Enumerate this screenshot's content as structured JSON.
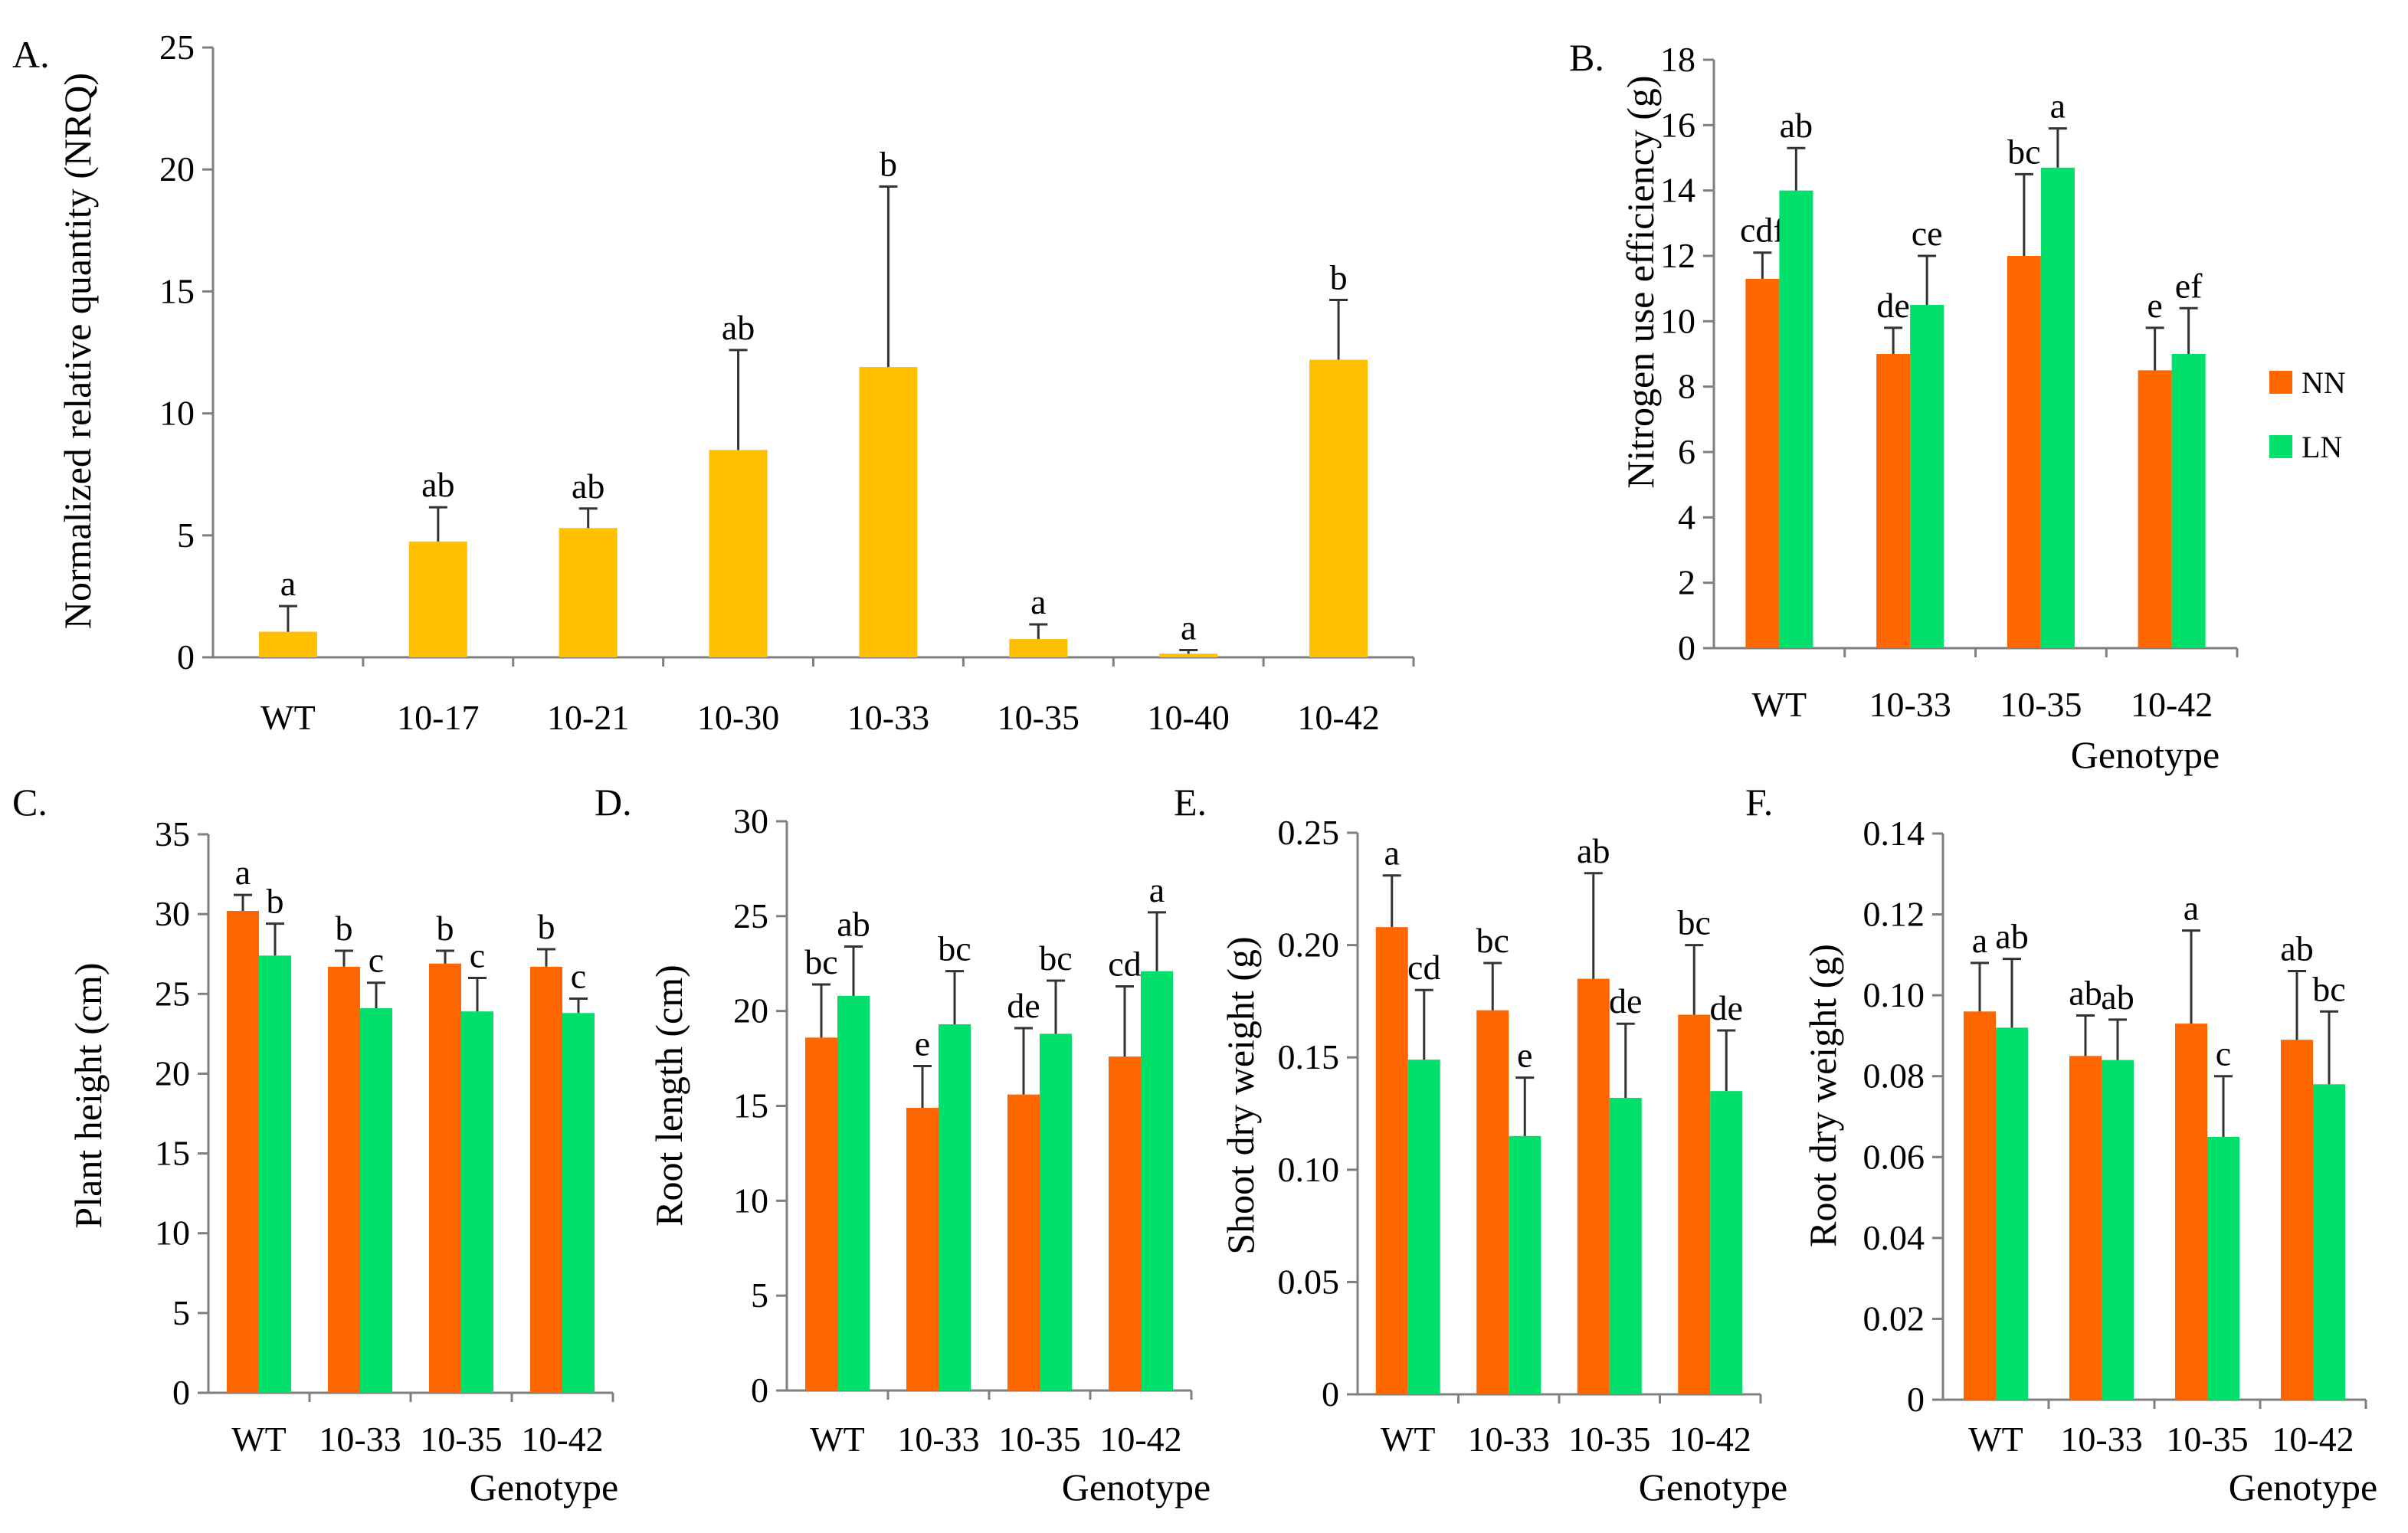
{
  "colors": {
    "single": "#FFC000",
    "NN": "#FF6600",
    "LN": "#00E06A"
  },
  "legend": [
    "NN",
    "LN"
  ],
  "chart_data": [
    {
      "id": "A",
      "panel_label": "A.",
      "type": "bar",
      "categories": [
        "WT",
        "10-17",
        "10-21",
        "10-30",
        "10-33",
        "10-35",
        "10-40",
        "10-42"
      ],
      "series": [
        {
          "name": "",
          "values": [
            1.05,
            4.75,
            5.3,
            8.5,
            11.9,
            0.75,
            0.15,
            12.2
          ],
          "errors": [
            1.05,
            1.4,
            0.8,
            4.1,
            7.4,
            0.6,
            0.15,
            2.45
          ],
          "letters": [
            "a",
            "ab",
            "ab",
            "ab",
            "b",
            "a",
            "a",
            "b"
          ]
        }
      ],
      "ylabel": "Normalized relative quantity (NRQ)",
      "xlabel": "",
      "ylim": [
        0,
        25
      ],
      "yticks": [
        0,
        5,
        10,
        15,
        20,
        25
      ],
      "ytick_labels": [
        "0",
        "5",
        "10",
        "15",
        "20",
        "25"
      ]
    },
    {
      "id": "B",
      "panel_label": "B.",
      "type": "bar",
      "categories": [
        "WT",
        "10-33",
        "10-35",
        "10-42"
      ],
      "series": [
        {
          "name": "NN",
          "values": [
            11.3,
            9.0,
            12.0,
            8.5
          ],
          "errors": [
            0.8,
            0.8,
            2.5,
            1.3
          ],
          "letters": [
            "cdf",
            "de",
            "bc",
            "e"
          ]
        },
        {
          "name": "LN",
          "values": [
            14.0,
            10.5,
            14.7,
            9.0
          ],
          "errors": [
            1.3,
            1.5,
            1.2,
            1.4
          ],
          "letters": [
            "ab",
            "ce",
            "a",
            "ef"
          ]
        }
      ],
      "ylabel": "Nitrogen use efficiency (g)",
      "xlabel": "Genotype",
      "ylim": [
        0,
        18
      ],
      "yticks": [
        0,
        2,
        4,
        6,
        8,
        10,
        12,
        14,
        16,
        18
      ],
      "ytick_labels": [
        "0",
        "2",
        "4",
        "6",
        "8",
        "10",
        "12",
        "14",
        "16",
        "18"
      ]
    },
    {
      "id": "C",
      "panel_label": "C.",
      "type": "bar",
      "categories": [
        "WT",
        "10-33",
        "10-35",
        "10-42"
      ],
      "series": [
        {
          "name": "NN",
          "values": [
            30.2,
            26.7,
            26.9,
            26.7
          ],
          "errors": [
            1.0,
            1.0,
            0.8,
            1.1
          ],
          "letters": [
            "a",
            "b",
            "b",
            "b"
          ]
        },
        {
          "name": "LN",
          "values": [
            27.4,
            24.1,
            23.9,
            23.8
          ],
          "errors": [
            2.0,
            1.6,
            2.1,
            0.9
          ],
          "letters": [
            "b",
            "c",
            "c",
            "c"
          ]
        }
      ],
      "ylabel": "Plant height (cm)",
      "xlabel": "Genotype",
      "ylim": [
        0,
        35
      ],
      "yticks": [
        0,
        5,
        10,
        15,
        20,
        25,
        30,
        35
      ],
      "ytick_labels": [
        "0",
        "5",
        "10",
        "15",
        "20",
        "25",
        "30",
        "35"
      ]
    },
    {
      "id": "D",
      "panel_label": "D.",
      "type": "bar",
      "categories": [
        "WT",
        "10-33",
        "10-35",
        "10-42"
      ],
      "series": [
        {
          "name": "NN",
          "values": [
            18.6,
            14.9,
            15.6,
            17.6
          ],
          "errors": [
            2.8,
            2.2,
            3.5,
            3.7
          ],
          "letters": [
            "bc",
            "e",
            "de",
            "cd"
          ]
        },
        {
          "name": "LN",
          "values": [
            20.8,
            19.3,
            18.8,
            22.1
          ],
          "errors": [
            2.6,
            2.8,
            2.8,
            3.1
          ],
          "letters": [
            "ab",
            "bc",
            "bc",
            "a"
          ]
        }
      ],
      "ylabel": "Root length (cm)",
      "xlabel": "Genotype",
      "ylim": [
        0,
        30
      ],
      "yticks": [
        0,
        5,
        10,
        15,
        20,
        25,
        30
      ],
      "ytick_labels": [
        "0",
        "5",
        "10",
        "15",
        "20",
        "25",
        "30"
      ]
    },
    {
      "id": "E",
      "panel_label": "E.",
      "type": "bar",
      "categories": [
        "WT",
        "10-33",
        "10-35",
        "10-42"
      ],
      "series": [
        {
          "name": "NN",
          "values": [
            0.208,
            0.171,
            0.185,
            0.169
          ],
          "errors": [
            0.023,
            0.021,
            0.047,
            0.031
          ],
          "letters": [
            "a",
            "bc",
            "ab",
            "bc"
          ]
        },
        {
          "name": "LN",
          "values": [
            0.149,
            0.115,
            0.132,
            0.135
          ],
          "errors": [
            0.031,
            0.026,
            0.033,
            0.027
          ],
          "letters": [
            "cd",
            "e",
            "de",
            "de"
          ]
        }
      ],
      "ylabel": "Shoot dry weight (g)",
      "xlabel": "Genotype",
      "ylim": [
        0,
        0.25
      ],
      "yticks": [
        0,
        0.05,
        0.1,
        0.15,
        0.2,
        0.25
      ],
      "ytick_labels": [
        "0",
        "0.05",
        "0.10",
        "0.15",
        "0.20",
        "0.25"
      ]
    },
    {
      "id": "F",
      "panel_label": "F.",
      "type": "bar",
      "categories": [
        "WT",
        "10-33",
        "10-35",
        "10-42"
      ],
      "series": [
        {
          "name": "NN",
          "values": [
            0.096,
            0.085,
            0.093,
            0.089
          ],
          "errors": [
            0.012,
            0.01,
            0.023,
            0.017
          ],
          "letters": [
            "a",
            "ab",
            "a",
            "ab"
          ]
        },
        {
          "name": "LN",
          "values": [
            0.092,
            0.084,
            0.065,
            0.078
          ],
          "errors": [
            0.017,
            0.01,
            0.015,
            0.018
          ],
          "letters": [
            "ab",
            "ab",
            "c",
            "bc"
          ]
        }
      ],
      "ylabel": "Root dry weight (g)",
      "xlabel": "Genotype",
      "ylim": [
        0,
        0.14
      ],
      "yticks": [
        0,
        0.02,
        0.04,
        0.06,
        0.08,
        0.1,
        0.12,
        0.14
      ],
      "ytick_labels": [
        "0",
        "0.02",
        "0.04",
        "0.06",
        "0.08",
        "0.10",
        "0.12",
        "0.14"
      ]
    }
  ]
}
